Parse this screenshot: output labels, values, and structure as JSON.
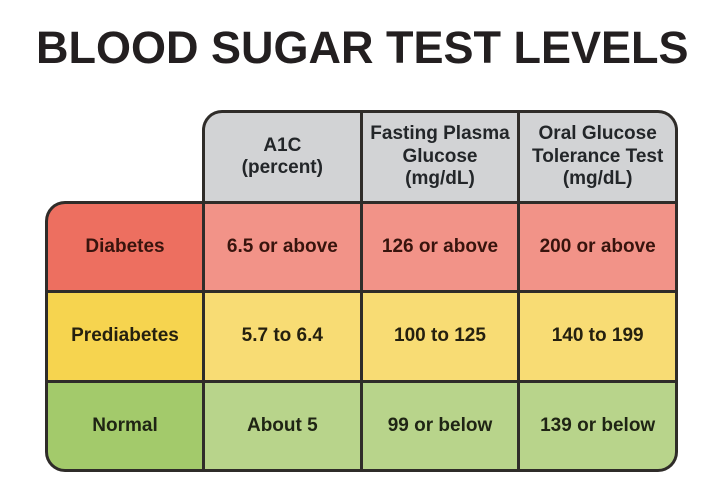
{
  "title": "BLOOD SUGAR TEST LEVELS",
  "colors": {
    "page_bg": "#FFFFFF",
    "title_text": "#231F20",
    "border": "#2F2C29",
    "header_bg": "#D2D3D5",
    "header_text": "#232629"
  },
  "table": {
    "columns": [
      {
        "id": "a1c",
        "label": "A1C\n(percent)"
      },
      {
        "id": "fasting-plasma-glucose",
        "label": "Fasting Plasma\nGlucose\n(mg/dL)"
      },
      {
        "id": "oral-glucose-tolerance-test",
        "label": "Oral Glucose\nTolerance Test\n(mg/dL)"
      }
    ],
    "rows": [
      {
        "label": "Diabetes",
        "values": [
          "6.5 or above",
          "126 or above",
          "200 or above"
        ],
        "label_bg": "#ED6F60",
        "value_bg": "#F29388",
        "text": "#38140D"
      },
      {
        "label": "Prediabetes",
        "values": [
          "5.7 to 6.4",
          "100 to 125",
          "140 to 199"
        ],
        "label_bg": "#F6D44F",
        "value_bg": "#F8DC74",
        "text": "#25200F"
      },
      {
        "label": "Normal",
        "values": [
          "About 5",
          "99 or below",
          "139 or below"
        ],
        "label_bg": "#A3CA6B",
        "value_bg": "#B8D48B",
        "text": "#1F2414"
      }
    ]
  },
  "chart_data": {
    "type": "table",
    "title": "BLOOD SUGAR TEST LEVELS",
    "columns": [
      "",
      "A1C (percent)",
      "Fasting Plasma Glucose (mg/dL)",
      "Oral Glucose Tolerance Test (mg/dL)"
    ],
    "rows": [
      [
        "Diabetes",
        "6.5 or above",
        "126 or above",
        "200 or above"
      ],
      [
        "Prediabetes",
        "5.7 to 6.4",
        "100 to 125",
        "140 to 199"
      ],
      [
        "Normal",
        "About 5",
        "99 or below",
        "139 or below"
      ]
    ]
  }
}
